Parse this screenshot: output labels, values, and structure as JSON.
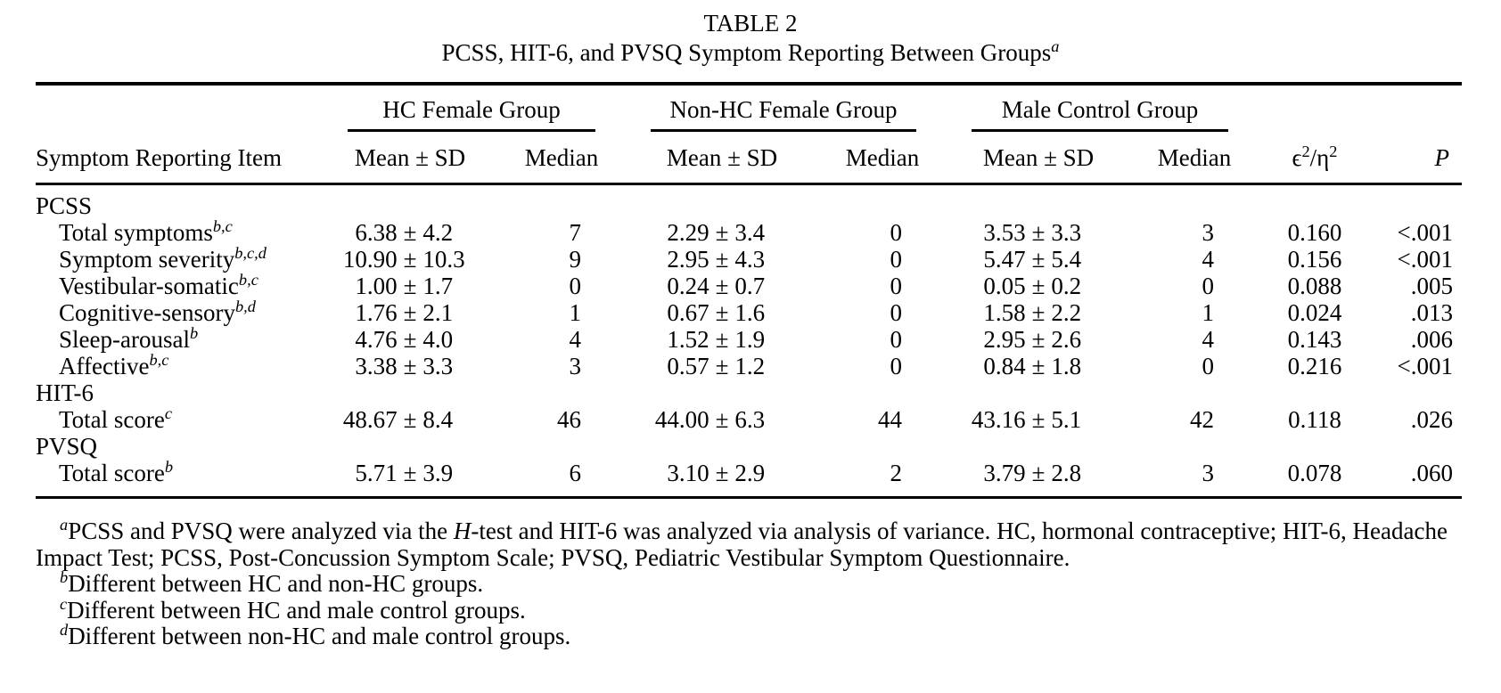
{
  "title": "TABLE 2",
  "subtitle": "PCSS, HIT-6, and PVSQ Symptom Reporting Between Groups",
  "subtitle_sup": "a",
  "symbols": {
    "pm": "±",
    "slash": "/"
  },
  "table": {
    "item_header": "Symptom Reporting Item",
    "groups": [
      {
        "label": "HC Female Group"
      },
      {
        "label": "Non-HC Female Group"
      },
      {
        "label": "Male Control Group"
      }
    ],
    "sub_mean": "Mean ± SD",
    "sub_median": "Median",
    "effect_header": {
      "num_base": "ϵ",
      "num_exp": "2",
      "den_base": "η",
      "den_exp": "2"
    },
    "p_header": "P",
    "rows": [
      {
        "type": "section",
        "label": "PCSS"
      },
      {
        "type": "data",
        "label": "Total symptoms",
        "sup": "b,c",
        "hc_mean": "6.38",
        "hc_sd": "4.2",
        "hc_median": "7",
        "nonhc_mean": "2.29",
        "nonhc_sd": "3.4",
        "nonhc_median": "0",
        "male_mean": "3.53",
        "male_sd": "3.3",
        "male_median": "3",
        "effect": "0.160",
        "p": "<.001"
      },
      {
        "type": "data",
        "label": "Symptom severity",
        "sup": "b,c,d",
        "hc_mean": "10.90",
        "hc_sd": "10.3",
        "hc_median": "9",
        "nonhc_mean": "2.95",
        "nonhc_sd": "4.3",
        "nonhc_median": "0",
        "male_mean": "5.47",
        "male_sd": "5.4",
        "male_median": "4",
        "effect": "0.156",
        "p": "<.001"
      },
      {
        "type": "data",
        "label": "Vestibular-somatic",
        "sup": "b,c",
        "hc_mean": "1.00",
        "hc_sd": "1.7",
        "hc_median": "0",
        "nonhc_mean": "0.24",
        "nonhc_sd": "0.7",
        "nonhc_median": "0",
        "male_mean": "0.05",
        "male_sd": "0.2",
        "male_median": "0",
        "effect": "0.088",
        "p": ".005"
      },
      {
        "type": "data",
        "label": "Cognitive-sensory",
        "sup": "b,d",
        "hc_mean": "1.76",
        "hc_sd": "2.1",
        "hc_median": "1",
        "nonhc_mean": "0.67",
        "nonhc_sd": "1.6",
        "nonhc_median": "0",
        "male_mean": "1.58",
        "male_sd": "2.2",
        "male_median": "1",
        "effect": "0.024",
        "p": ".013"
      },
      {
        "type": "data",
        "label": "Sleep-arousal",
        "sup": "b",
        "hc_mean": "4.76",
        "hc_sd": "4.0",
        "hc_median": "4",
        "nonhc_mean": "1.52",
        "nonhc_sd": "1.9",
        "nonhc_median": "0",
        "male_mean": "2.95",
        "male_sd": "2.6",
        "male_median": "4",
        "effect": "0.143",
        "p": ".006"
      },
      {
        "type": "data",
        "label": "Affective",
        "sup": "b,c",
        "hc_mean": "3.38",
        "hc_sd": "3.3",
        "hc_median": "3",
        "nonhc_mean": "0.57",
        "nonhc_sd": "1.2",
        "nonhc_median": "0",
        "male_mean": "0.84",
        "male_sd": "1.8",
        "male_median": "0",
        "effect": "0.216",
        "p": "<.001"
      },
      {
        "type": "section",
        "label": "HIT-6"
      },
      {
        "type": "data",
        "label": "Total score",
        "sup": "c",
        "hc_mean": "48.67",
        "hc_sd": "8.4",
        "hc_median": "46",
        "nonhc_mean": "44.00",
        "nonhc_sd": "6.3",
        "nonhc_median": "44",
        "male_mean": "43.16",
        "male_sd": "5.1",
        "male_median": "42",
        "effect": "0.118",
        "p": ".026"
      },
      {
        "type": "section",
        "label": "PVSQ"
      },
      {
        "type": "data",
        "label": "Total score",
        "sup": "b",
        "hc_mean": "5.71",
        "hc_sd": "3.9",
        "hc_median": "6",
        "nonhc_mean": "3.10",
        "nonhc_sd": "2.9",
        "nonhc_median": "2",
        "male_mean": "3.79",
        "male_sd": "2.8",
        "male_median": "3",
        "effect": "0.078",
        "p": ".060"
      }
    ]
  },
  "footnotes": {
    "a": {
      "sup": "a",
      "pre_italic": "PCSS and PVSQ were analyzed via the ",
      "italic": "H",
      "post_italic": "-test and HIT-6 was analyzed via analysis of variance. HC, hormonal contraceptive; HIT-6, Headache Impact Test; PCSS, Post-Concussion Symptom Scale; PVSQ, Pediatric Vestibular Symptom Questionnaire."
    },
    "b": {
      "sup": "b",
      "text": "Different between HC and non-HC groups."
    },
    "c": {
      "sup": "c",
      "text": "Different between HC and male control groups."
    },
    "d": {
      "sup": "d",
      "text": "Different between non-HC and male control groups."
    }
  }
}
